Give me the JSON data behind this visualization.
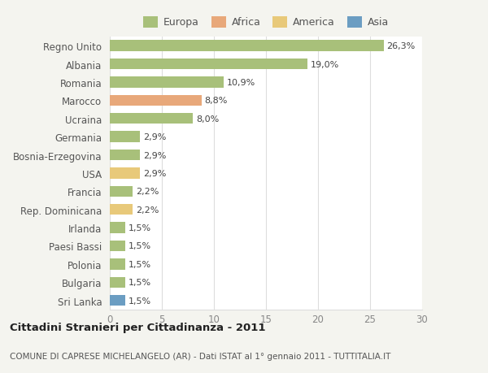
{
  "categories": [
    "Sri Lanka",
    "Bulgaria",
    "Polonia",
    "Paesi Bassi",
    "Irlanda",
    "Rep. Dominicana",
    "Francia",
    "USA",
    "Bosnia-Erzegovina",
    "Germania",
    "Ucraina",
    "Marocco",
    "Romania",
    "Albania",
    "Regno Unito"
  ],
  "values": [
    1.5,
    1.5,
    1.5,
    1.5,
    1.5,
    2.2,
    2.2,
    2.9,
    2.9,
    2.9,
    8.0,
    8.8,
    10.9,
    19.0,
    26.3
  ],
  "labels": [
    "1,5%",
    "1,5%",
    "1,5%",
    "1,5%",
    "1,5%",
    "2,2%",
    "2,2%",
    "2,9%",
    "2,9%",
    "2,9%",
    "8,0%",
    "8,8%",
    "10,9%",
    "19,0%",
    "26,3%"
  ],
  "colors": [
    "#6b9dc2",
    "#a8c07a",
    "#a8c07a",
    "#a8c07a",
    "#a8c07a",
    "#e8c97a",
    "#a8c07a",
    "#e8c97a",
    "#a8c07a",
    "#a8c07a",
    "#a8c07a",
    "#e8a87a",
    "#a8c07a",
    "#a8c07a",
    "#a8c07a"
  ],
  "legend_labels": [
    "Europa",
    "Africa",
    "America",
    "Asia"
  ],
  "legend_colors": [
    "#a8c07a",
    "#e8a87a",
    "#e8c97a",
    "#6b9dc2"
  ],
  "xlim": [
    0,
    30
  ],
  "xticks": [
    0,
    5,
    10,
    15,
    20,
    25,
    30
  ],
  "title": "Cittadini Stranieri per Cittadinanza - 2011",
  "subtitle": "COMUNE DI CAPRESE MICHELANGELO (AR) - Dati ISTAT al 1° gennaio 2011 - TUTTITALIA.IT",
  "background_color": "#f4f4ef",
  "bar_background": "#ffffff",
  "grid_color": "#dddddd",
  "label_fontsize": 8.0,
  "bar_height": 0.6
}
